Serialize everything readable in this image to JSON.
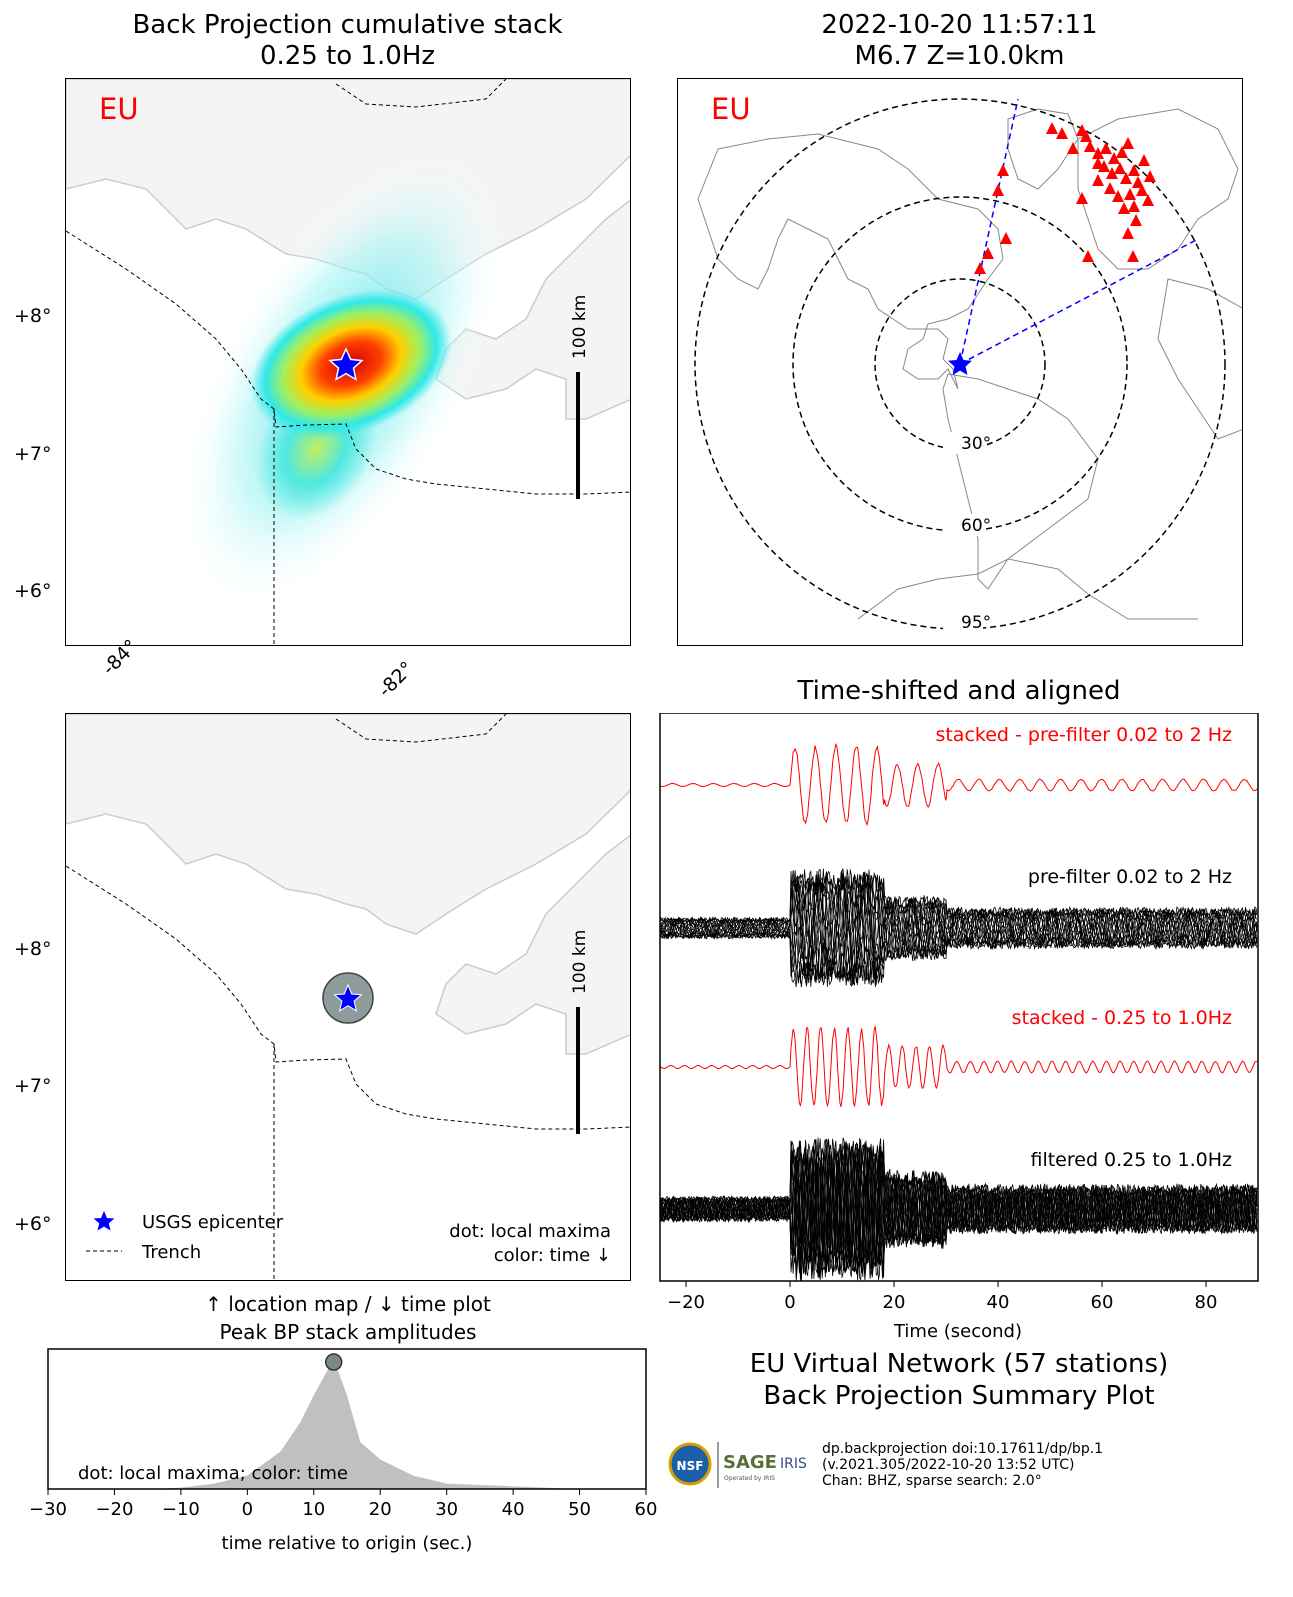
{
  "bp_map": {
    "title_line1": "Back Projection cumulative stack",
    "title_line2": "0.25 to 1.0Hz",
    "network_label": "EU",
    "lat_ticks": [
      "+8°",
      "+7°",
      "+6°"
    ],
    "lon_ticks": [
      "-84°",
      "-82°"
    ],
    "scale_label": "100 km"
  },
  "station_map": {
    "title_line1": "2022-10-20 11:57:11",
    "title_line2": "M6.7 Z=10.0km",
    "network_label": "EU",
    "ring_labels": [
      "30°",
      "60°",
      "95°"
    ]
  },
  "location_map": {
    "lat_ticks": [
      "+8°",
      "+7°",
      "+6°"
    ],
    "scale_label": "100 km",
    "legend_epicenter": "USGS epicenter",
    "legend_trench": "Trench",
    "note_line1": "dot: local maxima",
    "note_line2": "color: time ↓"
  },
  "amp_plot": {
    "title_line1": "↑ location map / ↓ time plot",
    "title_line2": "Peak BP stack amplitudes",
    "note": "dot: local maxima; color: time",
    "xlabel": "time relative to origin (sec.)"
  },
  "waveforms": {
    "title": "Time-shifted and aligned",
    "label_stacked_pre": "stacked - pre-filter 0.02 to 2 Hz",
    "label_pre": "pre-filter 0.02 to 2 Hz",
    "label_stacked_filt": "stacked - 0.25 to 1.0Hz",
    "label_filt": "filtered 0.25 to 1.0Hz",
    "xlabel": "Time (second)"
  },
  "summary": {
    "line1": "EU Virtual Network (57 stations)",
    "line2": "Back Projection Summary Plot",
    "credit1": "dp.backprojection doi:10.17611/dp/bp.1",
    "credit2": "(v.2021.305/2022-10-20 13:52 UTC)",
    "credit3": "Chan: BHZ, sparse search: 2.0°",
    "logo_nsf": "NSF",
    "logo_sage": "SAGE",
    "logo_iris": "IRIS",
    "logo_sub": "Operated by IRIS"
  },
  "colors": {
    "epicenter": "#0000ff",
    "stations": "#ff0000",
    "trench": "#000000",
    "land": "#f4f4f4",
    "stacked_trace": "#ff0000",
    "trace": "#000000",
    "peak_fill": "#c0c0c0",
    "maxima_dot": "#7a8a8a"
  },
  "chart_data": [
    {
      "type": "line",
      "title": "Time-shifted and aligned",
      "xlabel": "Time (second)",
      "xlim": [
        -25,
        90
      ],
      "xticks": [
        -20,
        0,
        20,
        40,
        60,
        80
      ],
      "series": [
        {
          "name": "stacked - pre-filter 0.02 to 2 Hz"
        },
        {
          "name": "pre-filter 0.02 to 2 Hz"
        },
        {
          "name": "stacked - 0.25 to 1.0Hz"
        },
        {
          "name": "filtered 0.25 to 1.0Hz"
        }
      ]
    },
    {
      "type": "area",
      "title": "Peak BP stack amplitudes",
      "xlabel": "time relative to origin (sec.)",
      "xlim": [
        -30,
        60
      ],
      "xticks": [
        -30,
        -20,
        -10,
        0,
        10,
        20,
        30,
        40,
        50,
        60
      ],
      "x": [
        -30,
        -15,
        -10,
        -5,
        0,
        5,
        8,
        10,
        13,
        15,
        17,
        20,
        25,
        30,
        40,
        50,
        60
      ],
      "y": [
        0.0,
        0.0,
        0.01,
        0.04,
        0.1,
        0.28,
        0.5,
        0.7,
        0.97,
        0.7,
        0.35,
        0.22,
        0.1,
        0.04,
        0.02,
        0.0,
        0.0
      ],
      "local_maxima": [
        {
          "x": 13,
          "y": 0.97
        }
      ]
    }
  ]
}
